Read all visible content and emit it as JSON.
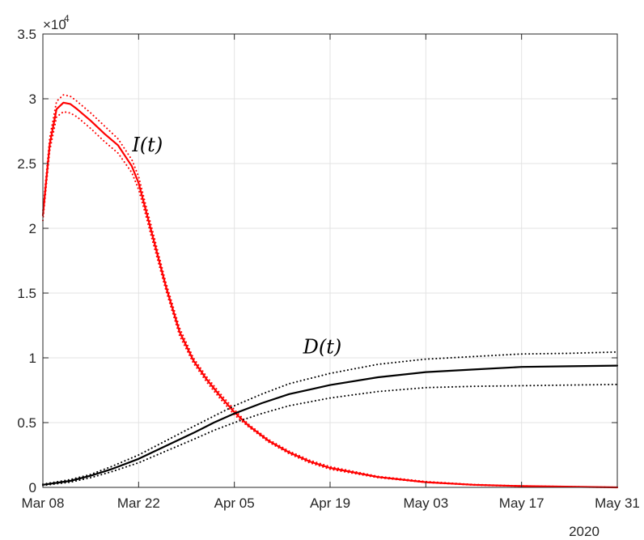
{
  "chart_data": {
    "type": "line",
    "title": "",
    "xlabel": "",
    "ylabel": "",
    "x_axis": {
      "type": "date",
      "start": "2020-03-08",
      "end": "2020-05-31",
      "tick_labels": [
        "Mar 08",
        "Mar 22",
        "Apr 05",
        "Apr 19",
        "May 03",
        "May 17",
        "May 31"
      ],
      "tick_dates": [
        "2020-03-08",
        "2020-03-22",
        "2020-04-05",
        "2020-04-19",
        "2020-05-03",
        "2020-05-17",
        "2020-05-31"
      ],
      "year_label": "2020"
    },
    "y_axis": {
      "ylim": [
        0,
        3.5
      ],
      "tick_labels": [
        "0",
        "0.5",
        "1",
        "1.5",
        "2",
        "2.5",
        "3",
        "3.5"
      ],
      "tick_values": [
        0,
        0.5,
        1,
        1.5,
        2,
        2.5,
        3,
        3.5
      ],
      "exponent_label": "×10",
      "exponent_power": "4"
    },
    "grid": true,
    "annotations": [
      {
        "text": "I(t)",
        "date": "2020-03-22",
        "value": 2.65
      },
      {
        "text": "D(t)",
        "date": "2020-04-16",
        "value": 1.09
      }
    ],
    "series": [
      {
        "color": "#ff0000",
        "style": "solid",
        "points": [
          [
            "2020-03-08",
            2.1
          ],
          [
            "2020-03-09",
            2.65
          ],
          [
            "2020-03-10",
            2.92
          ],
          [
            "2020-03-11",
            2.97
          ],
          [
            "2020-03-12",
            2.96
          ],
          [
            "2020-03-13",
            2.92
          ],
          [
            "2020-03-15",
            2.83
          ],
          [
            "2020-03-17",
            2.73
          ],
          [
            "2020-03-19",
            2.64
          ],
          [
            "2020-03-21",
            2.48
          ],
          [
            "2020-03-22",
            2.35
          ],
          [
            "2020-03-23",
            2.15
          ],
          [
            "2020-03-24",
            1.95
          ],
          [
            "2020-03-26",
            1.55
          ],
          [
            "2020-03-28",
            1.2
          ],
          [
            "2020-03-30",
            0.98
          ],
          [
            "2020-04-01",
            0.83
          ],
          [
            "2020-04-03",
            0.7
          ],
          [
            "2020-04-05",
            0.58
          ],
          [
            "2020-04-07",
            0.48
          ],
          [
            "2020-04-10",
            0.36
          ],
          [
            "2020-04-13",
            0.27
          ],
          [
            "2020-04-16",
            0.2
          ],
          [
            "2020-04-19",
            0.15
          ],
          [
            "2020-04-26",
            0.08
          ],
          [
            "2020-05-03",
            0.04
          ],
          [
            "2020-05-10",
            0.02
          ],
          [
            "2020-05-17",
            0.01
          ],
          [
            "2020-05-31",
            0.0
          ]
        ]
      },
      {
        "color": "#ff0000",
        "style": "dotted",
        "points": [
          [
            "2020-03-08",
            2.14
          ],
          [
            "2020-03-09",
            2.7
          ],
          [
            "2020-03-10",
            2.98
          ],
          [
            "2020-03-11",
            3.03
          ],
          [
            "2020-03-12",
            3.02
          ],
          [
            "2020-03-13",
            2.98
          ],
          [
            "2020-03-15",
            2.89
          ],
          [
            "2020-03-17",
            2.79
          ],
          [
            "2020-03-19",
            2.69
          ],
          [
            "2020-03-21",
            2.53
          ],
          [
            "2020-03-22",
            2.4
          ],
          [
            "2020-03-23",
            2.19
          ],
          [
            "2020-03-24",
            1.99
          ],
          [
            "2020-03-26",
            1.58
          ],
          [
            "2020-03-28",
            1.23
          ],
          [
            "2020-03-30",
            1.0
          ],
          [
            "2020-04-01",
            0.85
          ],
          [
            "2020-04-03",
            0.72
          ],
          [
            "2020-04-05",
            0.6
          ],
          [
            "2020-04-07",
            0.49
          ],
          [
            "2020-04-10",
            0.37
          ],
          [
            "2020-04-13",
            0.28
          ],
          [
            "2020-04-16",
            0.21
          ],
          [
            "2020-04-19",
            0.16
          ],
          [
            "2020-04-26",
            0.085
          ],
          [
            "2020-05-03",
            0.045
          ],
          [
            "2020-05-10",
            0.022
          ],
          [
            "2020-05-17",
            0.011
          ],
          [
            "2020-05-31",
            0.0
          ]
        ]
      },
      {
        "color": "#ff0000",
        "style": "dotted",
        "points": [
          [
            "2020-03-08",
            2.06
          ],
          [
            "2020-03-09",
            2.6
          ],
          [
            "2020-03-10",
            2.86
          ],
          [
            "2020-03-11",
            2.9
          ],
          [
            "2020-03-12",
            2.89
          ],
          [
            "2020-03-13",
            2.86
          ],
          [
            "2020-03-15",
            2.77
          ],
          [
            "2020-03-17",
            2.67
          ],
          [
            "2020-03-19",
            2.58
          ],
          [
            "2020-03-21",
            2.43
          ],
          [
            "2020-03-22",
            2.3
          ],
          [
            "2020-03-23",
            2.11
          ],
          [
            "2020-03-24",
            1.91
          ],
          [
            "2020-03-26",
            1.52
          ],
          [
            "2020-03-28",
            1.17
          ],
          [
            "2020-03-30",
            0.96
          ],
          [
            "2020-04-01",
            0.81
          ],
          [
            "2020-04-03",
            0.68
          ],
          [
            "2020-04-05",
            0.56
          ],
          [
            "2020-04-07",
            0.47
          ],
          [
            "2020-04-10",
            0.35
          ],
          [
            "2020-04-13",
            0.26
          ],
          [
            "2020-04-16",
            0.19
          ],
          [
            "2020-04-19",
            0.14
          ],
          [
            "2020-04-26",
            0.075
          ],
          [
            "2020-05-03",
            0.038
          ],
          [
            "2020-05-10",
            0.018
          ],
          [
            "2020-05-17",
            0.009
          ],
          [
            "2020-05-31",
            0.0
          ]
        ]
      },
      {
        "color": "#000000",
        "style": "solid",
        "points": [
          [
            "2020-03-08",
            0.02
          ],
          [
            "2020-03-12",
            0.05
          ],
          [
            "2020-03-15",
            0.09
          ],
          [
            "2020-03-18",
            0.14
          ],
          [
            "2020-03-22",
            0.22
          ],
          [
            "2020-03-26",
            0.32
          ],
          [
            "2020-03-30",
            0.42
          ],
          [
            "2020-04-02",
            0.5
          ],
          [
            "2020-04-05",
            0.57
          ],
          [
            "2020-04-09",
            0.65
          ],
          [
            "2020-04-13",
            0.72
          ],
          [
            "2020-04-19",
            0.79
          ],
          [
            "2020-04-26",
            0.85
          ],
          [
            "2020-05-03",
            0.89
          ],
          [
            "2020-05-10",
            0.91
          ],
          [
            "2020-05-17",
            0.93
          ],
          [
            "2020-05-24",
            0.935
          ],
          [
            "2020-05-31",
            0.94
          ]
        ]
      },
      {
        "color": "#000000",
        "style": "dotted",
        "points": [
          [
            "2020-03-08",
            0.025
          ],
          [
            "2020-03-12",
            0.06
          ],
          [
            "2020-03-15",
            0.1
          ],
          [
            "2020-03-18",
            0.16
          ],
          [
            "2020-03-22",
            0.25
          ],
          [
            "2020-03-26",
            0.36
          ],
          [
            "2020-03-30",
            0.47
          ],
          [
            "2020-04-02",
            0.55
          ],
          [
            "2020-04-05",
            0.63
          ],
          [
            "2020-04-09",
            0.72
          ],
          [
            "2020-04-13",
            0.8
          ],
          [
            "2020-04-19",
            0.88
          ],
          [
            "2020-04-26",
            0.95
          ],
          [
            "2020-05-03",
            0.99
          ],
          [
            "2020-05-10",
            1.01
          ],
          [
            "2020-05-17",
            1.03
          ],
          [
            "2020-05-24",
            1.035
          ],
          [
            "2020-05-31",
            1.045
          ]
        ]
      },
      {
        "color": "#000000",
        "style": "dotted",
        "points": [
          [
            "2020-03-08",
            0.015
          ],
          [
            "2020-03-12",
            0.04
          ],
          [
            "2020-03-15",
            0.075
          ],
          [
            "2020-03-18",
            0.12
          ],
          [
            "2020-03-22",
            0.19
          ],
          [
            "2020-03-26",
            0.28
          ],
          [
            "2020-03-30",
            0.37
          ],
          [
            "2020-04-02",
            0.44
          ],
          [
            "2020-04-05",
            0.5
          ],
          [
            "2020-04-09",
            0.57
          ],
          [
            "2020-04-13",
            0.63
          ],
          [
            "2020-04-19",
            0.69
          ],
          [
            "2020-04-26",
            0.74
          ],
          [
            "2020-05-03",
            0.77
          ],
          [
            "2020-05-10",
            0.78
          ],
          [
            "2020-05-17",
            0.785
          ],
          [
            "2020-05-24",
            0.79
          ],
          [
            "2020-05-31",
            0.795
          ]
        ]
      }
    ]
  }
}
